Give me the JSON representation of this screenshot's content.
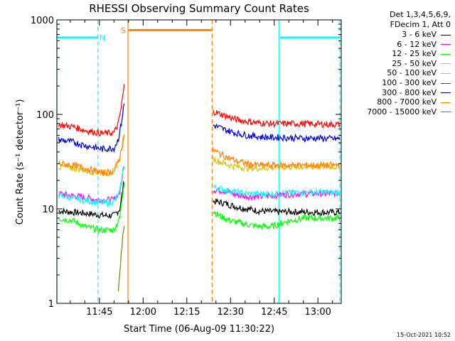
{
  "chart_data": {
    "type": "line",
    "title": "RHESSI Observing Summary Count Rates",
    "xlabel": "Start Time (06-Aug-09 11:30:22)",
    "ylabel": "Count Rate (s⁻¹ detector⁻¹)",
    "yscale": "log",
    "ylim": [
      1,
      1000
    ],
    "y_ticks": [
      "1",
      "10",
      "100",
      "1000"
    ],
    "x_ticks": [
      "11:45",
      "12:00",
      "12:15",
      "12:30",
      "12:45",
      "13:00"
    ],
    "x_tick_minutes": [
      45,
      60,
      75,
      90,
      105,
      120
    ],
    "xlim_minutes": [
      30.4,
      128
    ],
    "legend_header": [
      "Det 1,3,4,5,6,9,",
      "FDecim 1, Att 0"
    ],
    "series": [
      {
        "name": "3 - 6 keV",
        "color": "#000000",
        "seg1": [
          [
            31,
            9.5
          ],
          [
            40,
            9
          ],
          [
            47,
            8.5
          ],
          [
            50,
            8.5
          ],
          [
            52,
            10
          ],
          [
            53.5,
            20
          ]
        ],
        "seg2": [
          [
            84,
            12
          ],
          [
            88,
            11.5
          ],
          [
            92,
            10.5
          ],
          [
            96,
            10
          ],
          [
            100,
            9.5
          ],
          [
            106,
            9.3
          ],
          [
            112,
            9.3
          ],
          [
            120,
            9.2
          ],
          [
            127.5,
            9.2
          ]
        ]
      },
      {
        "name": "6 - 12 keV",
        "color": "#ff00ff",
        "seg1": [
          [
            31,
            14.5
          ],
          [
            38,
            13.5
          ],
          [
            44,
            12.5
          ],
          [
            50,
            12.5
          ],
          [
            52,
            15
          ],
          [
            53.5,
            30
          ]
        ],
        "seg2": [
          [
            84,
            16
          ],
          [
            88,
            15.5
          ],
          [
            92,
            14
          ],
          [
            96,
            13.5
          ],
          [
            100,
            13.5
          ],
          [
            106,
            14
          ],
          [
            112,
            14.5
          ],
          [
            120,
            14.5
          ],
          [
            127.5,
            14.5
          ]
        ]
      },
      {
        "name": "12 - 25 keV",
        "color": "#00ff00",
        "seg1": [
          [
            31,
            8
          ],
          [
            36,
            7.5
          ],
          [
            40,
            6.5
          ],
          [
            45,
            6
          ],
          [
            50,
            6
          ],
          [
            52,
            8
          ],
          [
            53.5,
            20
          ]
        ],
        "seg2": [
          [
            84,
            9.5
          ],
          [
            86,
            8.5
          ],
          [
            90,
            7.5
          ],
          [
            96,
            6.8
          ],
          [
            100,
            6.5
          ],
          [
            104,
            6.5
          ],
          [
            110,
            7.5
          ],
          [
            116,
            8
          ],
          [
            122,
            8
          ],
          [
            127.5,
            8
          ]
        ]
      },
      {
        "name": "25 - 50 keV",
        "color": "#00ffff",
        "seg1": [
          [
            31,
            14
          ],
          [
            36,
            13
          ],
          [
            42,
            12
          ],
          [
            48,
            11.5
          ],
          [
            50,
            12
          ],
          [
            52,
            15
          ],
          [
            53.5,
            30
          ]
        ],
        "seg2": [
          [
            84,
            17
          ],
          [
            88,
            16
          ],
          [
            92,
            15
          ],
          [
            96,
            14.5
          ],
          [
            100,
            14.5
          ],
          [
            106,
            14.5
          ],
          [
            112,
            15
          ],
          [
            120,
            15
          ],
          [
            127.5,
            15
          ]
        ]
      },
      {
        "name": "50 - 100 keV",
        "color": "#e0c000",
        "seg1": [
          [
            31,
            28
          ],
          [
            36,
            27
          ],
          [
            42,
            25
          ],
          [
            48,
            24
          ],
          [
            50,
            25
          ],
          [
            52,
            35
          ],
          [
            53.5,
            60
          ]
        ],
        "seg2": [
          [
            84,
            34
          ],
          [
            88,
            30
          ],
          [
            92,
            28
          ],
          [
            96,
            27
          ],
          [
            100,
            27
          ],
          [
            106,
            27.5
          ],
          [
            112,
            28
          ],
          [
            120,
            28
          ],
          [
            127.5,
            28
          ]
        ]
      },
      {
        "name": "100 - 300 keV",
        "color": "#ff0000",
        "seg1": [
          [
            31,
            78
          ],
          [
            36,
            74
          ],
          [
            40,
            68
          ],
          [
            46,
            63
          ],
          [
            50,
            64
          ],
          [
            51.5,
            80
          ],
          [
            52.5,
            120
          ],
          [
            53.5,
            200
          ]
        ],
        "seg2": [
          [
            84,
            108
          ],
          [
            88,
            97
          ],
          [
            92,
            88
          ],
          [
            96,
            84
          ],
          [
            100,
            81
          ],
          [
            104,
            80
          ],
          [
            108,
            80
          ],
          [
            114,
            80
          ],
          [
            120,
            79
          ],
          [
            127.5,
            78
          ]
        ]
      },
      {
        "name": "300 - 800 keV",
        "color": "#0000cc",
        "seg1": [
          [
            31,
            54
          ],
          [
            36,
            51
          ],
          [
            40,
            47
          ],
          [
            46,
            43
          ],
          [
            50,
            44
          ],
          [
            51.5,
            55
          ],
          [
            52.5,
            80
          ],
          [
            53.5,
            130
          ]
        ],
        "seg2": [
          [
            84,
            77
          ],
          [
            88,
            69
          ],
          [
            92,
            63
          ],
          [
            96,
            60
          ],
          [
            100,
            58
          ],
          [
            104,
            57
          ],
          [
            108,
            57
          ],
          [
            114,
            56
          ],
          [
            120,
            56
          ],
          [
            127.5,
            55
          ]
        ]
      },
      {
        "name": "800 - 7000 keV",
        "color": "#ff8000",
        "seg1": [
          [
            31,
            30
          ],
          [
            36,
            29
          ],
          [
            40,
            27
          ],
          [
            46,
            24
          ],
          [
            50,
            25
          ],
          [
            52,
            35
          ],
          [
            53.5,
            60
          ]
        ],
        "seg2": [
          [
            84,
            42
          ],
          [
            88,
            36
          ],
          [
            92,
            32
          ],
          [
            96,
            30
          ],
          [
            100,
            29
          ],
          [
            106,
            29
          ],
          [
            112,
            29
          ],
          [
            120,
            29
          ],
          [
            127.5,
            29
          ]
        ]
      },
      {
        "name": "7000 - 15000 keV",
        "color": "#808000",
        "seg1": [
          [
            51.5,
            1.3
          ],
          [
            52,
            2
          ],
          [
            52.5,
            3.5
          ],
          [
            53,
            5
          ],
          [
            53.5,
            7
          ]
        ],
        "seg2": []
      }
    ],
    "flags": [
      {
        "label": "N",
        "color": "#00ffff",
        "bars": [
          [
            30.4,
            44.5
          ],
          [
            107,
            127.5
          ]
        ],
        "level": 650,
        "boundaries": [
          30.4,
          44.5,
          106.6,
          127.5
        ]
      },
      {
        "label": "S",
        "color": "#ff8000",
        "bars": [
          [
            55,
            83.5
          ]
        ],
        "level": 780,
        "boundaries": [
          54.8,
          83.7
        ]
      }
    ],
    "grid": false,
    "legend_position": "top-right outside plot"
  },
  "timestamp": "15-Oct-2021 10:52"
}
